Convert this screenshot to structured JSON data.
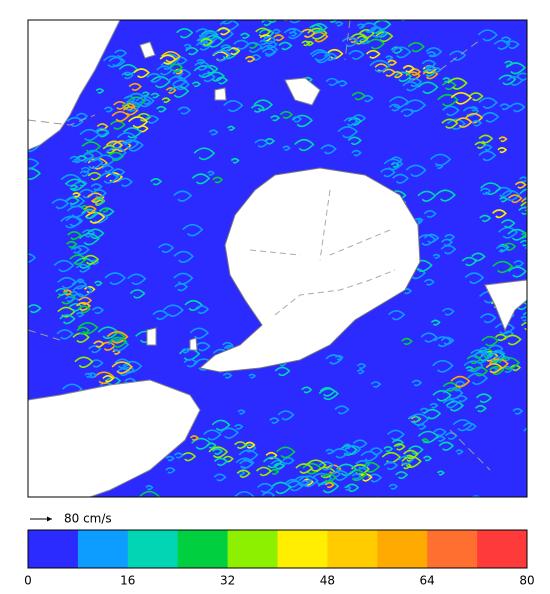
{
  "scale_label": "80 cm/s",
  "colorbar": {
    "lim": [
      0,
      80
    ],
    "ticks": [
      0,
      16,
      32,
      48,
      64,
      80
    ],
    "colors": [
      "#2b2bff",
      "#0d9cff",
      "#00d6b4",
      "#00d040",
      "#8cf000",
      "#ffee00",
      "#ffcc00",
      "#ffaa00",
      "#ff7030",
      "#ff3a3a"
    ]
  }
}
